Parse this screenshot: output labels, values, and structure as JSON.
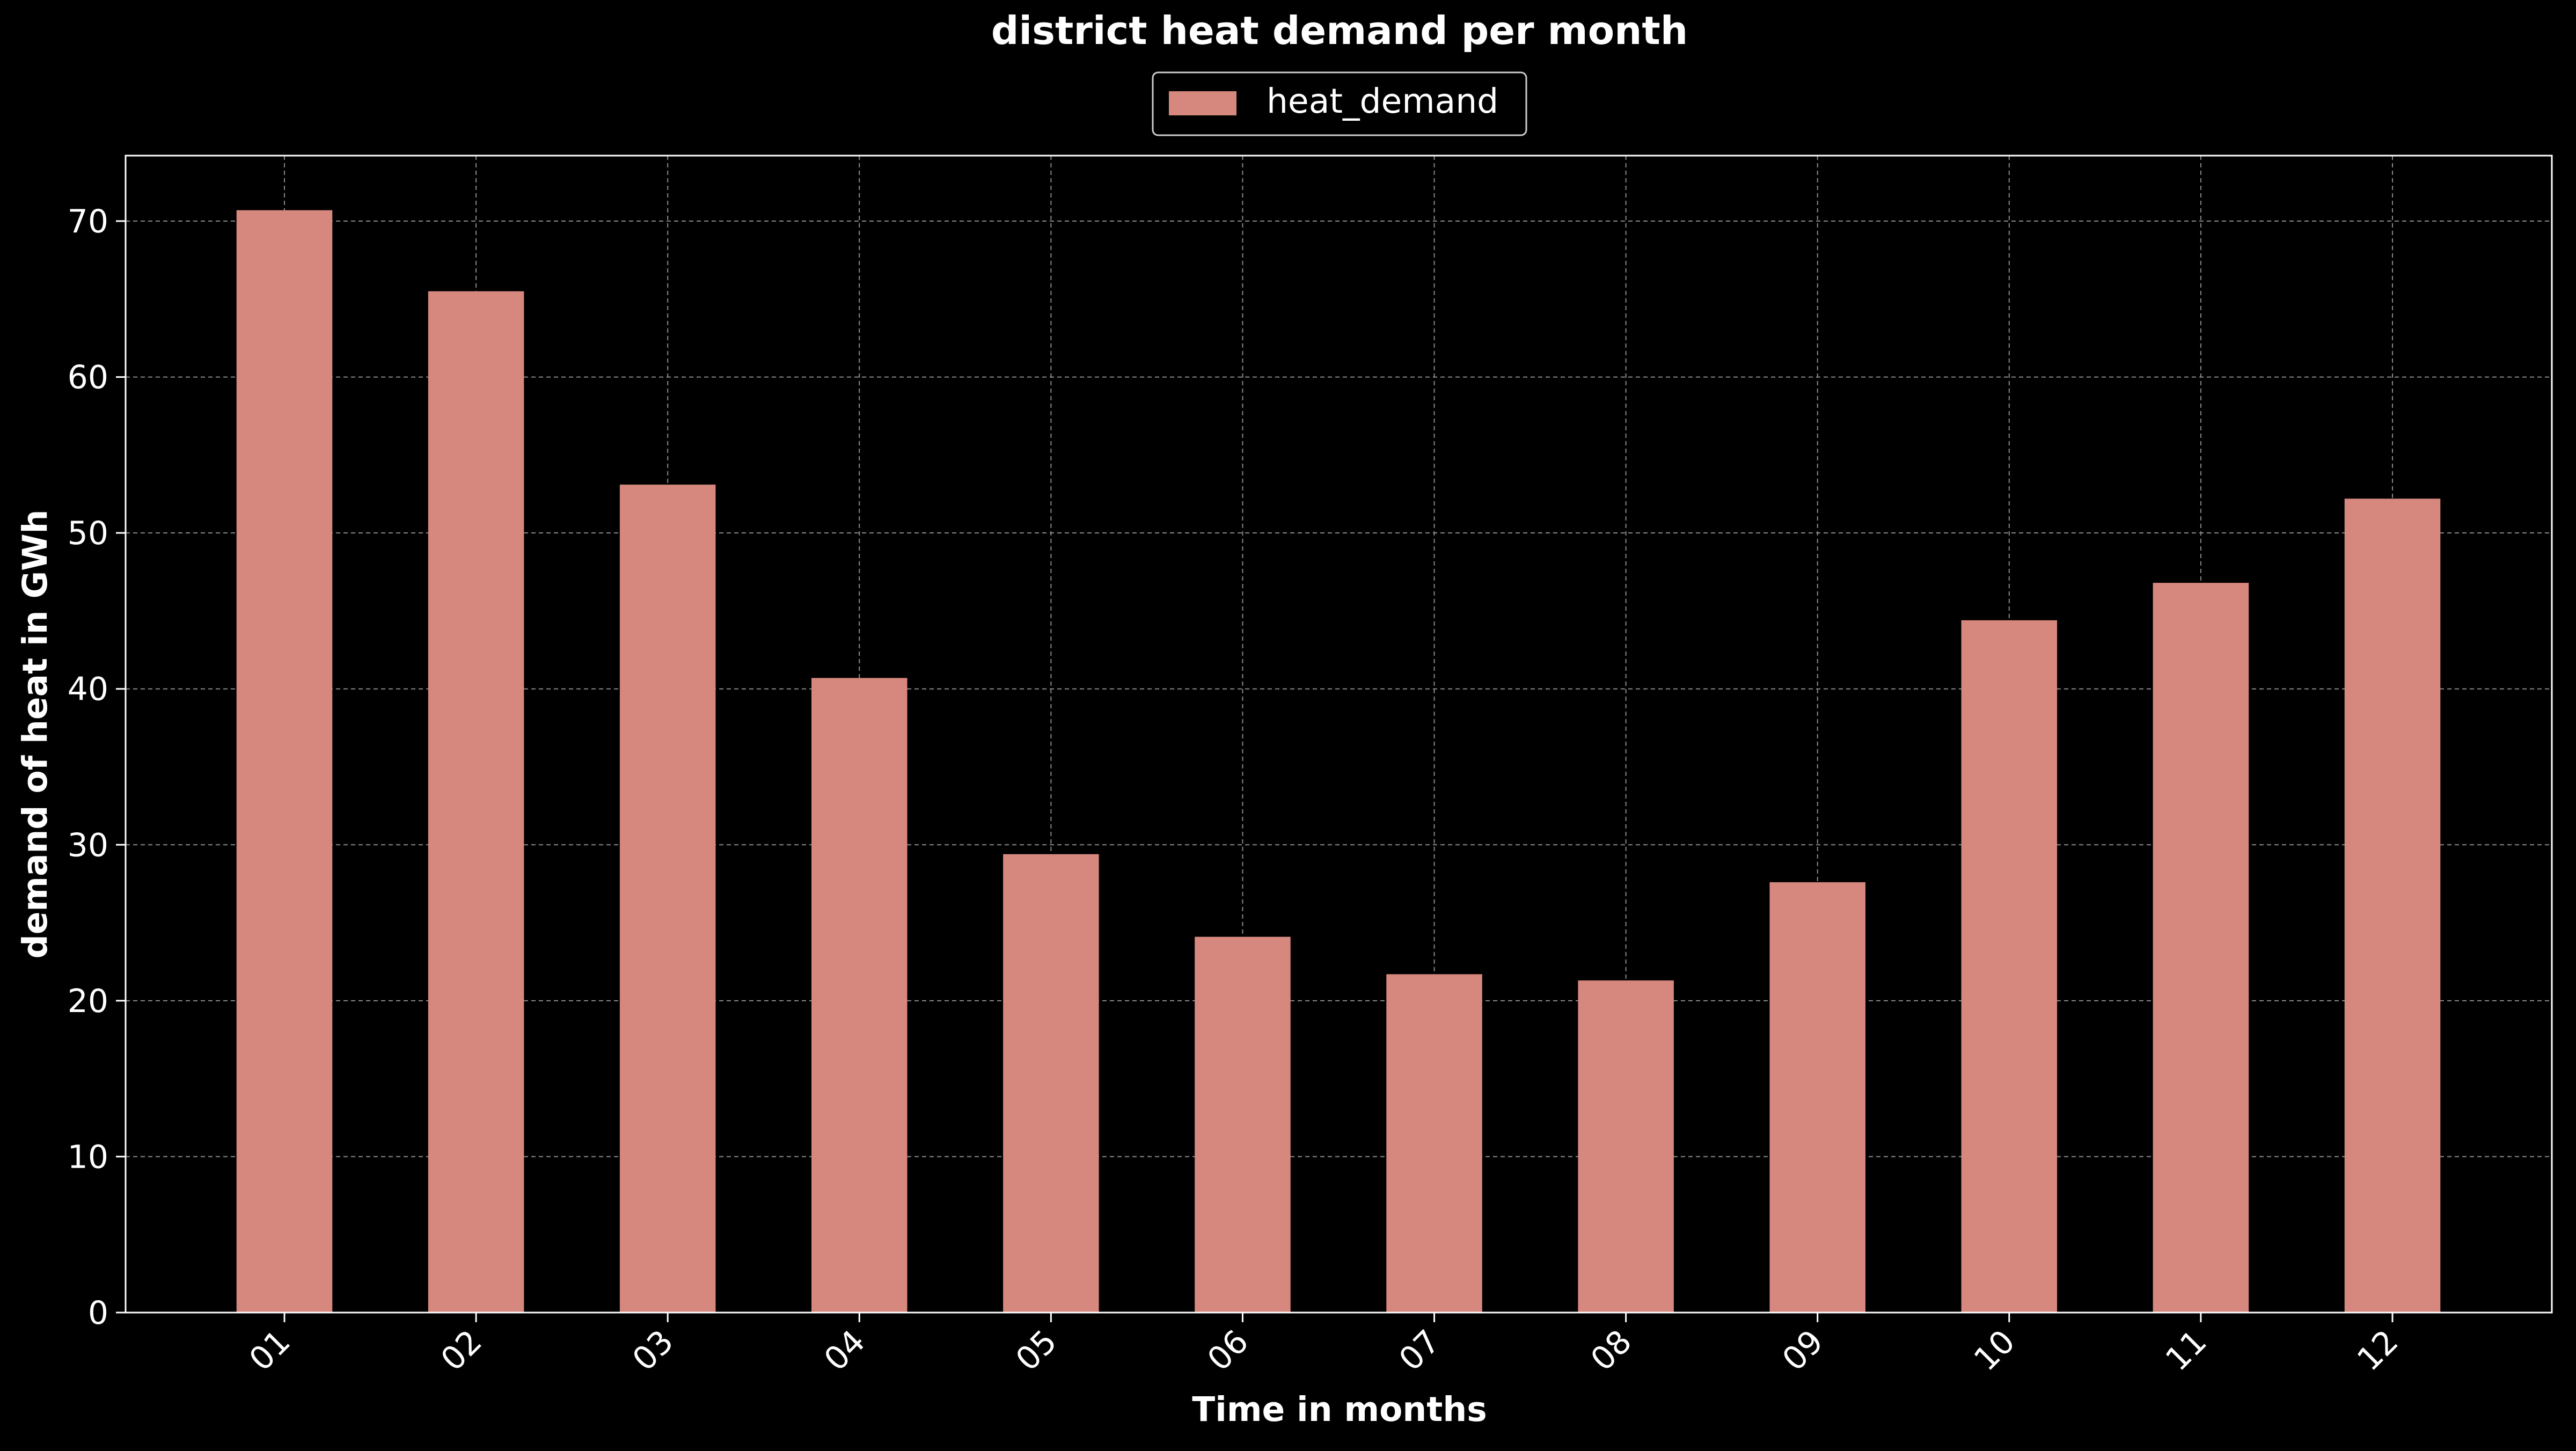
{
  "colors": {
    "background": "#000000",
    "bar": "#d6877e",
    "axis": "#ffffff",
    "grid": "#8a8a8a",
    "text": "#ffffff"
  },
  "chart_data": {
    "type": "bar",
    "title": "district heat demand per month",
    "xlabel": "Time in months",
    "ylabel": "demand of heat in GWh",
    "categories": [
      "01",
      "02",
      "03",
      "04",
      "05",
      "06",
      "07",
      "08",
      "09",
      "10",
      "11",
      "12"
    ],
    "series": [
      {
        "name": "heat_demand",
        "values": [
          70.7,
          65.5,
          53.1,
          40.7,
          29.4,
          24.1,
          21.7,
          21.3,
          27.6,
          44.4,
          46.8,
          52.2
        ]
      }
    ],
    "ylim": [
      0,
      74.2
    ],
    "yticks": [
      0,
      10,
      20,
      30,
      40,
      50,
      60,
      70
    ],
    "grid": true,
    "legend_position": "top-center"
  }
}
